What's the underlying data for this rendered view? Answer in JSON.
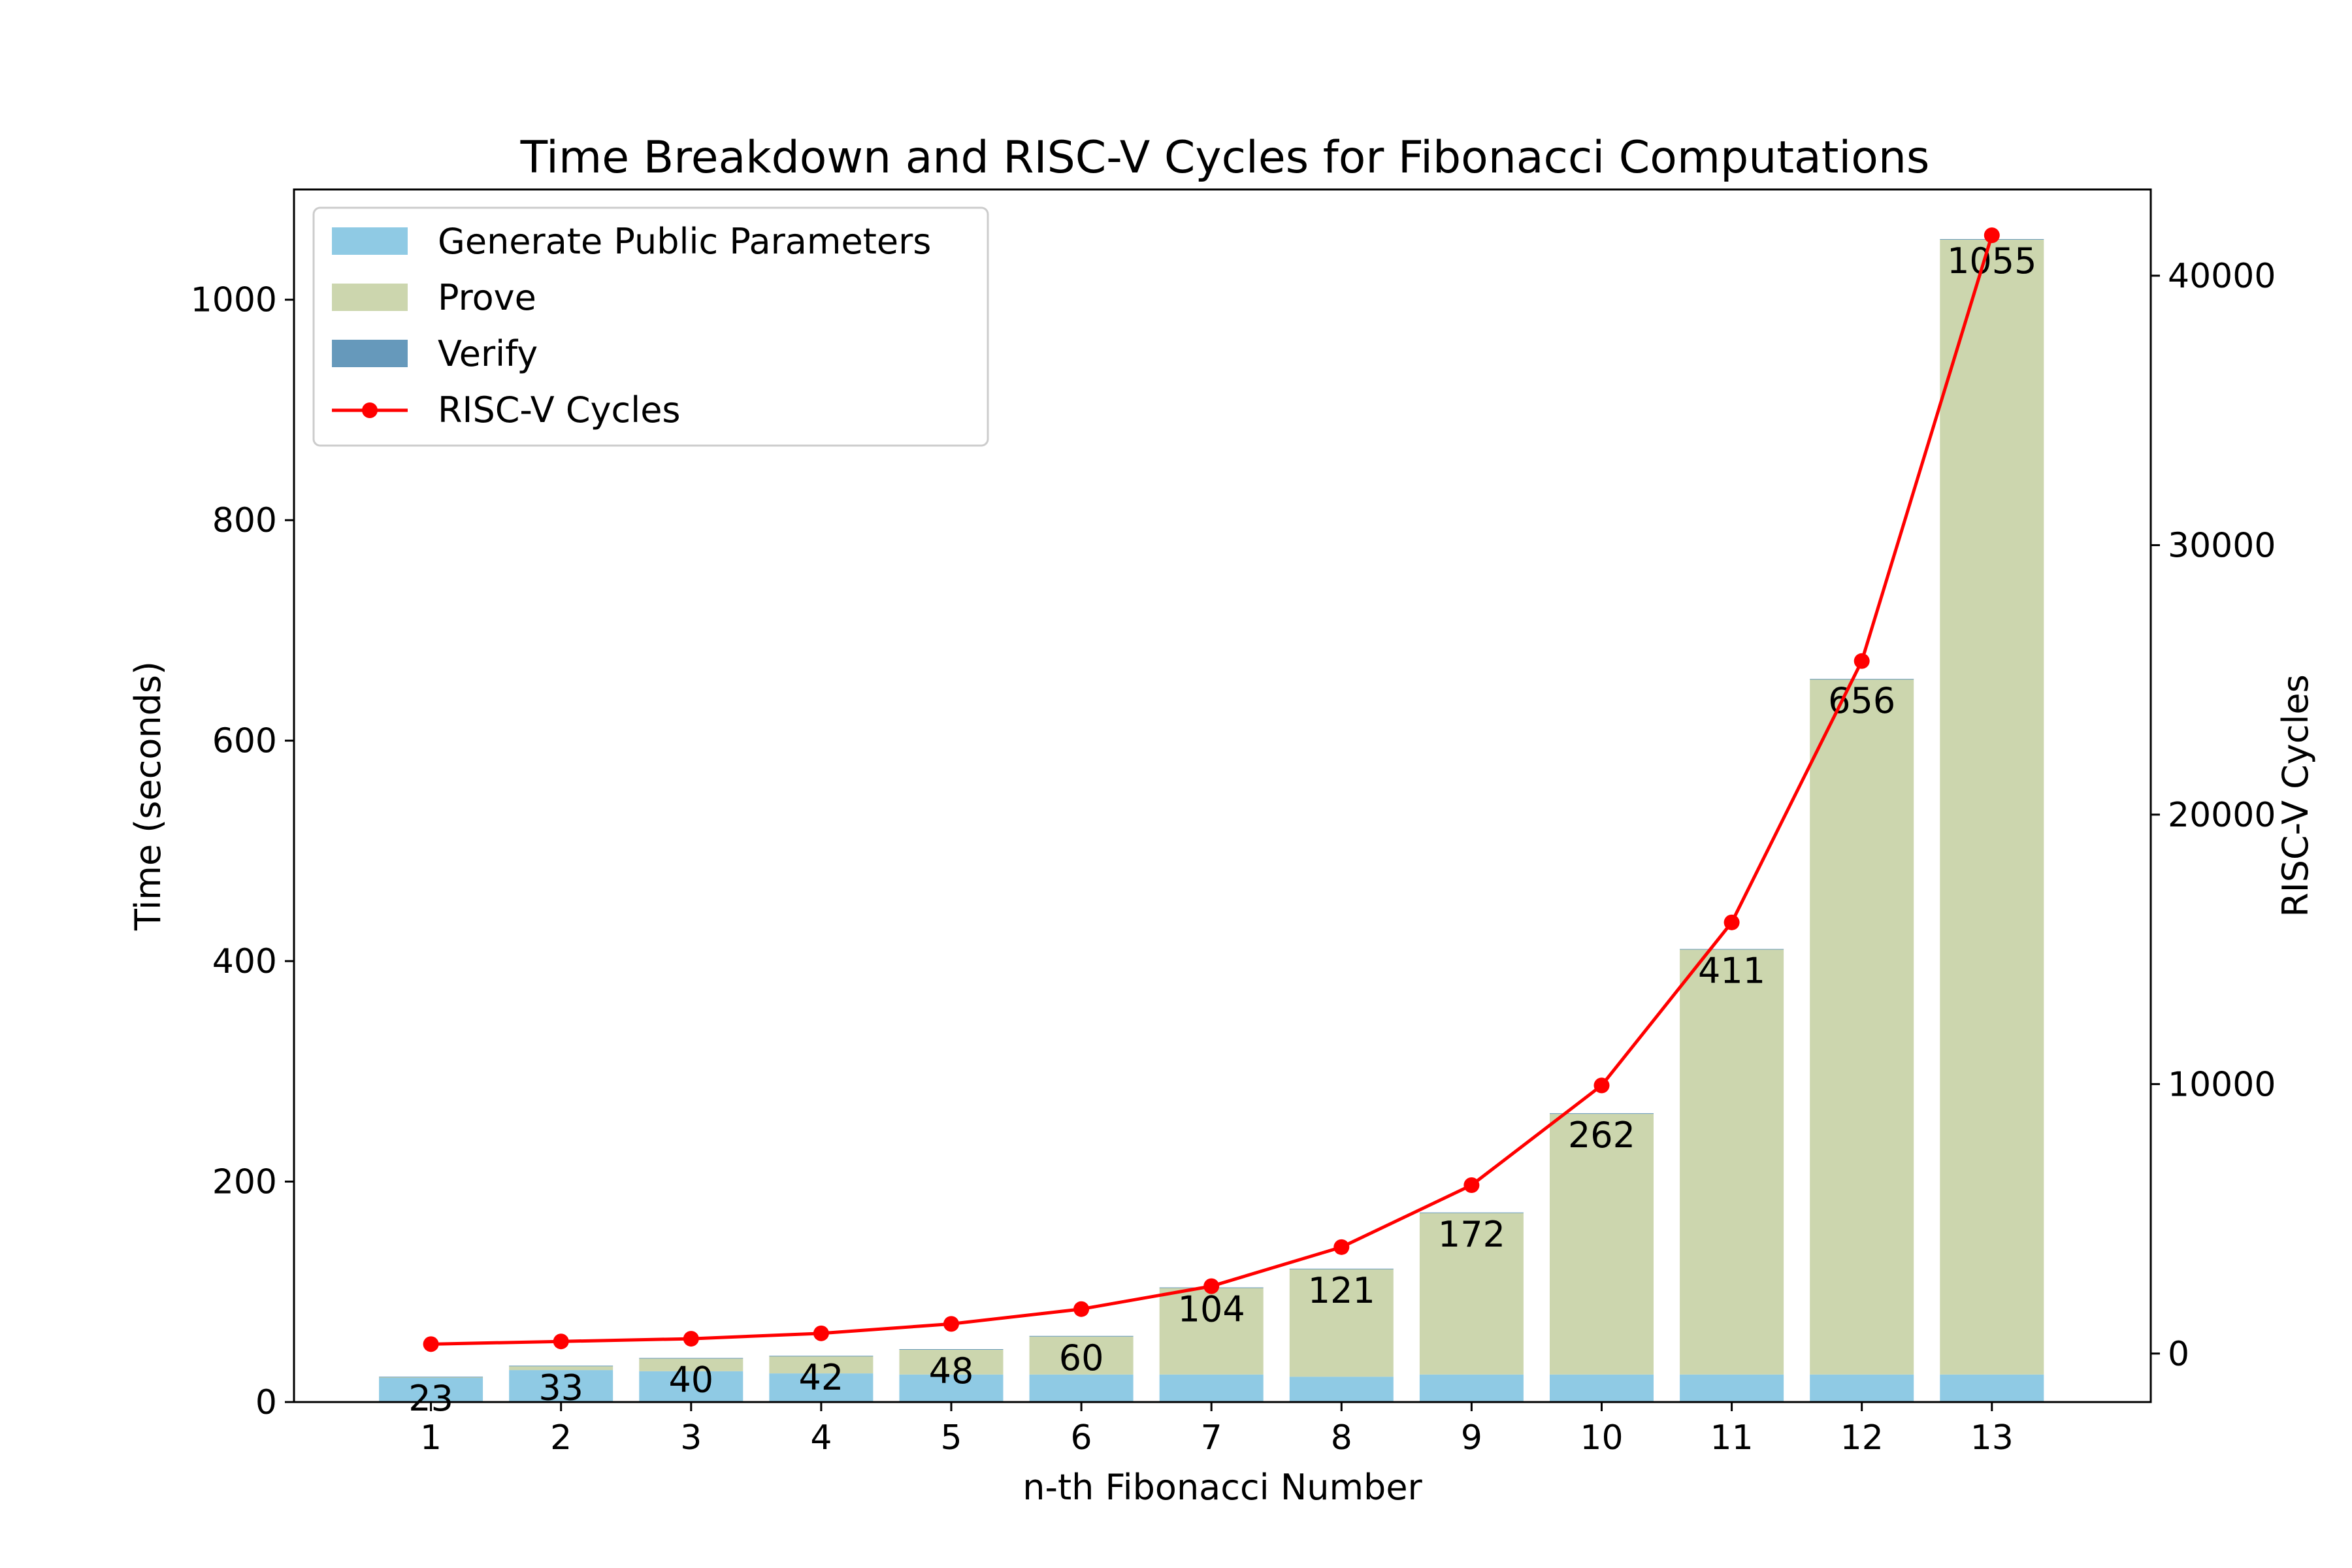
{
  "colors": {
    "generate": "#8fcae4",
    "prove": "#ccd6ae",
    "verify": "#6699bb",
    "cycles": "#ff0000",
    "frame": "#000000"
  },
  "chart_data": {
    "type": "bar",
    "title": "Time Breakdown and RISC-V Cycles for Fibonacci Computations",
    "xlabel": "n-th Fibonacci Number",
    "ylabel": "Time (seconds)",
    "y2label": "RISC-V Cycles",
    "ylim": [
      0,
      1100
    ],
    "y2lim": [
      -1800,
      43200
    ],
    "yticks": [
      0,
      200,
      400,
      600,
      800,
      1000
    ],
    "y2ticks": [
      0,
      10000,
      20000,
      30000,
      40000
    ],
    "legend_position": "upper-left",
    "stacked": true,
    "categories": [
      "1",
      "2",
      "3",
      "4",
      "5",
      "6",
      "7",
      "8",
      "9",
      "10",
      "11",
      "12",
      "13"
    ],
    "series": [
      {
        "name": "Generate Public Parameters",
        "kind": "bar",
        "color_key": "generate",
        "values": [
          22,
          29,
          28,
          26,
          25,
          25,
          25,
          23,
          25,
          25,
          25,
          25,
          25
        ]
      },
      {
        "name": "Prove",
        "kind": "bar",
        "color_key": "prove",
        "values": [
          0.5,
          3.5,
          11.5,
          15.5,
          22.5,
          34.5,
          78.5,
          97.5,
          146.5,
          236.5,
          385.5,
          630.5,
          1029.5
        ]
      },
      {
        "name": "Verify",
        "kind": "bar",
        "color_key": "verify",
        "values": [
          0.5,
          0.5,
          0.5,
          0.5,
          0.5,
          0.5,
          0.5,
          0.5,
          0.5,
          0.5,
          0.5,
          0.5,
          0.5
        ]
      },
      {
        "name": "RISC-V Cycles",
        "kind": "line",
        "axis": "right",
        "color_key": "cycles",
        "values": [
          350,
          450,
          550,
          750,
          1100,
          1650,
          2500,
          3950,
          6250,
          9950,
          16000,
          25700,
          41500
        ]
      }
    ],
    "data_labels": [
      "23",
      "33",
      "40",
      "42",
      "48",
      "60",
      "104",
      "121",
      "172",
      "262",
      "411",
      "656",
      "1055"
    ]
  }
}
